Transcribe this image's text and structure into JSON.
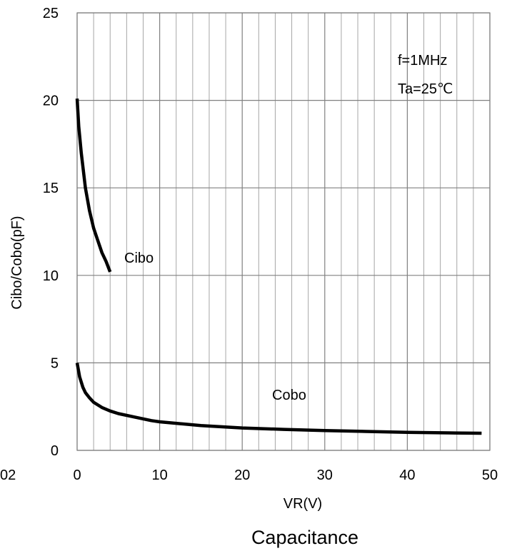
{
  "chart_data": {
    "type": "line",
    "title": "Capacitance",
    "xlabel": "VR(V)",
    "ylabel": "Cibo/Cobo(pF)",
    "xlim": [
      0,
      50
    ],
    "ylim": [
      0,
      25
    ],
    "x_ticks": [
      "0",
      "10",
      "20",
      "30",
      "40",
      "50"
    ],
    "y_ticks": [
      "0",
      "5",
      "10",
      "15",
      "20",
      "25"
    ],
    "grid": true,
    "conditions": [
      "f=1MHz",
      "Ta=25℃"
    ],
    "edge_fragment": "02",
    "series": [
      {
        "name": "Cibo",
        "color": "#000000",
        "points": [
          [
            0,
            20.1
          ],
          [
            0.2,
            18.5
          ],
          [
            0.5,
            17.0
          ],
          [
            1,
            15.0
          ],
          [
            1.5,
            13.7
          ],
          [
            2,
            12.7
          ],
          [
            2.5,
            12.0
          ],
          [
            3,
            11.3
          ],
          [
            3.5,
            10.8
          ],
          [
            4,
            10.2
          ]
        ]
      },
      {
        "name": "Cobo",
        "color": "#000000",
        "points": [
          [
            0,
            5.0
          ],
          [
            0.3,
            4.2
          ],
          [
            0.7,
            3.6
          ],
          [
            1,
            3.3
          ],
          [
            1.5,
            3.0
          ],
          [
            2,
            2.75
          ],
          [
            3,
            2.45
          ],
          [
            4,
            2.25
          ],
          [
            5,
            2.1
          ],
          [
            7,
            1.9
          ],
          [
            9,
            1.7
          ],
          [
            10,
            1.63
          ],
          [
            15,
            1.42
          ],
          [
            20,
            1.28
          ],
          [
            25,
            1.2
          ],
          [
            30,
            1.13
          ],
          [
            35,
            1.08
          ],
          [
            40,
            1.03
          ],
          [
            45,
            1.0
          ],
          [
            49,
            0.98
          ]
        ]
      }
    ]
  }
}
